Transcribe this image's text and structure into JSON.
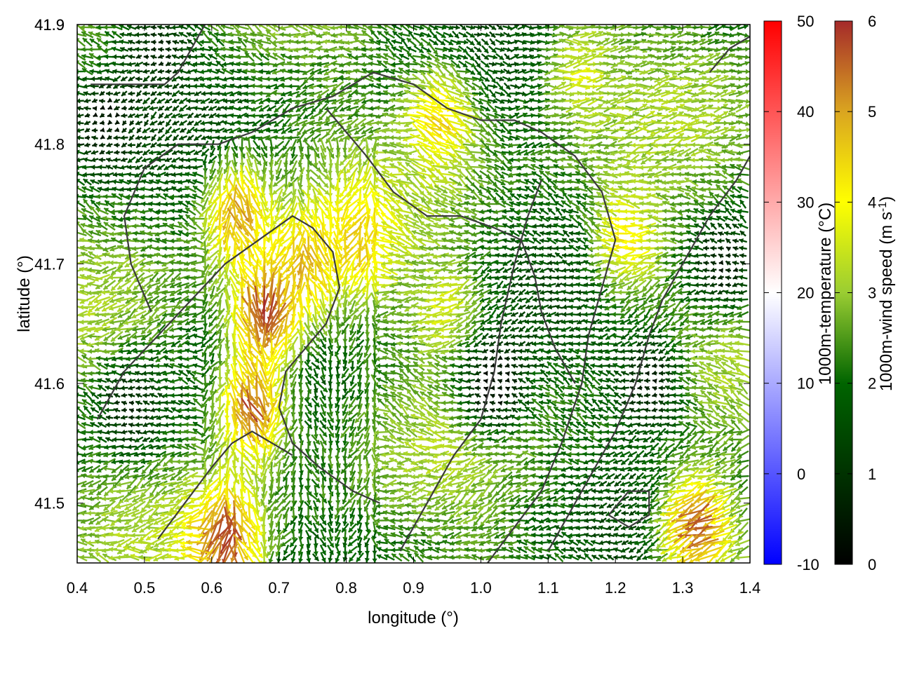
{
  "chart_data": {
    "type": "vector-field",
    "xlabel": "longitude (°)",
    "ylabel": "latitude (°)",
    "xlim": [
      0.4,
      1.4
    ],
    "ylim": [
      41.45,
      41.9
    ],
    "x_ticks": [
      "0.4",
      "0.5",
      "0.6",
      "0.7",
      "0.8",
      "0.9",
      "1.0",
      "1.1",
      "1.2",
      "1.3",
      "1.4"
    ],
    "y_ticks": [
      "41.5",
      "41.6",
      "41.7",
      "41.8",
      "41.9"
    ],
    "grid": "dotted",
    "colorbars": [
      {
        "label": "1000m-temperature (°C)",
        "ticks": [
          "-10",
          "0",
          "10",
          "20",
          "30",
          "40",
          "50"
        ],
        "range": [
          -10,
          50
        ],
        "colors": [
          "#0000ff",
          "#ffffff",
          "#ff0000"
        ]
      },
      {
        "label": "1000m-wind speed (m s",
        "label_sup": "-1",
        "label_close": ")",
        "ticks": [
          "0",
          "1",
          "2",
          "3",
          "4",
          "5",
          "6"
        ],
        "range": [
          0,
          6
        ],
        "colors": [
          "#000000",
          "#006400",
          "#9acd32",
          "#ffff00",
          "#daa520",
          "#a52a2a"
        ]
      }
    ],
    "wind_hotspots": [
      {
        "lon": 0.68,
        "lat": 41.66,
        "speed": 6.0
      },
      {
        "lon": 0.66,
        "lat": 41.58,
        "speed": 5.6
      },
      {
        "lon": 0.62,
        "lat": 41.47,
        "speed": 5.8
      },
      {
        "lon": 0.64,
        "lat": 41.74,
        "speed": 5.0
      },
      {
        "lon": 0.74,
        "lat": 41.7,
        "speed": 4.8
      },
      {
        "lon": 0.82,
        "lat": 41.72,
        "speed": 4.6
      },
      {
        "lon": 0.94,
        "lat": 41.82,
        "speed": 4.4
      },
      {
        "lon": 1.32,
        "lat": 41.48,
        "speed": 5.6
      },
      {
        "lon": 1.22,
        "lat": 41.72,
        "speed": 4.2
      },
      {
        "lon": 0.95,
        "lat": 41.66,
        "speed": 3.6
      },
      {
        "lon": 1.15,
        "lat": 41.86,
        "speed": 3.6
      }
    ],
    "calm_zones": [
      {
        "lon": 1.02,
        "lat": 41.6,
        "speed": 0.2
      },
      {
        "lon": 1.25,
        "lat": 41.6,
        "speed": 0.6
      },
      {
        "lon": 0.44,
        "lat": 41.82,
        "speed": 0.4
      },
      {
        "lon": 0.48,
        "lat": 41.58,
        "speed": 0.8
      },
      {
        "lon": 1.36,
        "lat": 41.7,
        "speed": 0.6
      },
      {
        "lon": 0.52,
        "lat": 41.88,
        "speed": 0.8
      }
    ],
    "contours": [
      [
        [
          0.43,
          41.57
        ],
        [
          0.47,
          41.61
        ],
        [
          0.52,
          41.64
        ],
        [
          0.57,
          41.67
        ],
        [
          0.62,
          41.7
        ],
        [
          0.67,
          41.72
        ],
        [
          0.72,
          41.74
        ],
        [
          0.75,
          41.73
        ],
        [
          0.78,
          41.71
        ],
        [
          0.79,
          41.68
        ],
        [
          0.77,
          41.65
        ],
        [
          0.74,
          41.63
        ],
        [
          0.71,
          41.61
        ],
        [
          0.7,
          41.58
        ],
        [
          0.72,
          41.55
        ],
        [
          0.76,
          41.53
        ],
        [
          0.81,
          41.51
        ],
        [
          0.85,
          41.5
        ]
      ],
      [
        [
          0.52,
          41.47
        ],
        [
          0.56,
          41.5
        ],
        [
          0.6,
          41.53
        ],
        [
          0.63,
          41.55
        ],
        [
          0.66,
          41.56
        ],
        [
          0.69,
          41.55
        ],
        [
          0.72,
          41.54
        ]
      ],
      [
        [
          0.51,
          41.66
        ],
        [
          0.48,
          41.7
        ],
        [
          0.47,
          41.74
        ],
        [
          0.5,
          41.78
        ],
        [
          0.55,
          41.8
        ],
        [
          0.61,
          41.8
        ],
        [
          0.66,
          41.81
        ],
        [
          0.72,
          41.83
        ],
        [
          0.78,
          41.84
        ],
        [
          0.84,
          41.86
        ],
        [
          0.9,
          41.85
        ],
        [
          0.95,
          41.83
        ],
        [
          1.0,
          41.82
        ],
        [
          1.05,
          41.82
        ],
        [
          1.09,
          41.81
        ],
        [
          1.14,
          41.79
        ],
        [
          1.18,
          41.76
        ],
        [
          1.2,
          41.72
        ],
        [
          1.18,
          41.68
        ],
        [
          1.16,
          41.64
        ],
        [
          1.15,
          41.6
        ],
        [
          1.12,
          41.55
        ],
        [
          1.09,
          41.51
        ],
        [
          1.05,
          41.48
        ],
        [
          1.01,
          41.45
        ]
      ],
      [
        [
          0.88,
          41.46
        ],
        [
          0.92,
          41.5
        ],
        [
          0.96,
          41.54
        ],
        [
          1.0,
          41.57
        ],
        [
          1.02,
          41.61
        ],
        [
          1.03,
          41.65
        ],
        [
          1.05,
          41.7
        ],
        [
          1.07,
          41.74
        ],
        [
          1.09,
          41.77
        ]
      ],
      [
        [
          0.77,
          41.83
        ],
        [
          0.83,
          41.79
        ],
        [
          0.87,
          41.76
        ],
        [
          0.92,
          41.74
        ],
        [
          0.97,
          41.74
        ],
        [
          1.02,
          41.73
        ],
        [
          1.06,
          41.72
        ],
        [
          1.08,
          41.69
        ],
        [
          1.09,
          41.66
        ],
        [
          1.11,
          41.63
        ],
        [
          1.14,
          41.6
        ]
      ],
      [
        [
          1.1,
          41.46
        ],
        [
          1.14,
          41.5
        ],
        [
          1.17,
          41.53
        ],
        [
          1.2,
          41.56
        ],
        [
          1.23,
          41.6
        ],
        [
          1.25,
          41.64
        ],
        [
          1.27,
          41.67
        ],
        [
          1.29,
          41.69
        ],
        [
          1.31,
          41.71
        ],
        [
          1.34,
          41.74
        ],
        [
          1.38,
          41.77
        ],
        [
          1.4,
          41.79
        ]
      ],
      [
        [
          1.19,
          41.49
        ],
        [
          1.22,
          41.51
        ],
        [
          1.25,
          41.51
        ],
        [
          1.25,
          41.49
        ],
        [
          1.22,
          41.48
        ],
        [
          1.19,
          41.49
        ]
      ],
      [
        [
          0.42,
          41.85
        ],
        [
          0.48,
          41.85
        ],
        [
          0.53,
          41.85
        ],
        [
          0.55,
          41.86
        ],
        [
          0.58,
          41.89
        ],
        [
          0.59,
          41.9
        ]
      ],
      [
        [
          1.34,
          41.86
        ],
        [
          1.37,
          41.88
        ],
        [
          1.4,
          41.89
        ]
      ]
    ]
  }
}
